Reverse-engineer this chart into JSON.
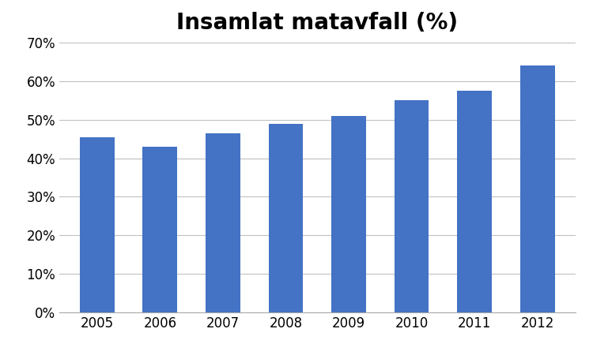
{
  "categories": [
    "2005",
    "2006",
    "2007",
    "2008",
    "2009",
    "2010",
    "2011",
    "2012"
  ],
  "values": [
    0.455,
    0.43,
    0.465,
    0.49,
    0.51,
    0.55,
    0.575,
    0.64
  ],
  "bar_color": "#4472C4",
  "title": "Insamlat matavfall (%)",
  "title_fontsize": 20,
  "title_fontweight": "bold",
  "ylim": [
    0.0,
    0.7
  ],
  "yticks": [
    0.0,
    0.1,
    0.2,
    0.3,
    0.4,
    0.5,
    0.6,
    0.7
  ],
  "ytick_labels": [
    "0%",
    "10%",
    "20%",
    "30%",
    "40%",
    "50%",
    "60%",
    "70%"
  ],
  "background_color": "#ffffff",
  "grid_color": "#c0c0c0",
  "bar_width": 0.55,
  "xtick_fontsize": 12,
  "ytick_fontsize": 12
}
